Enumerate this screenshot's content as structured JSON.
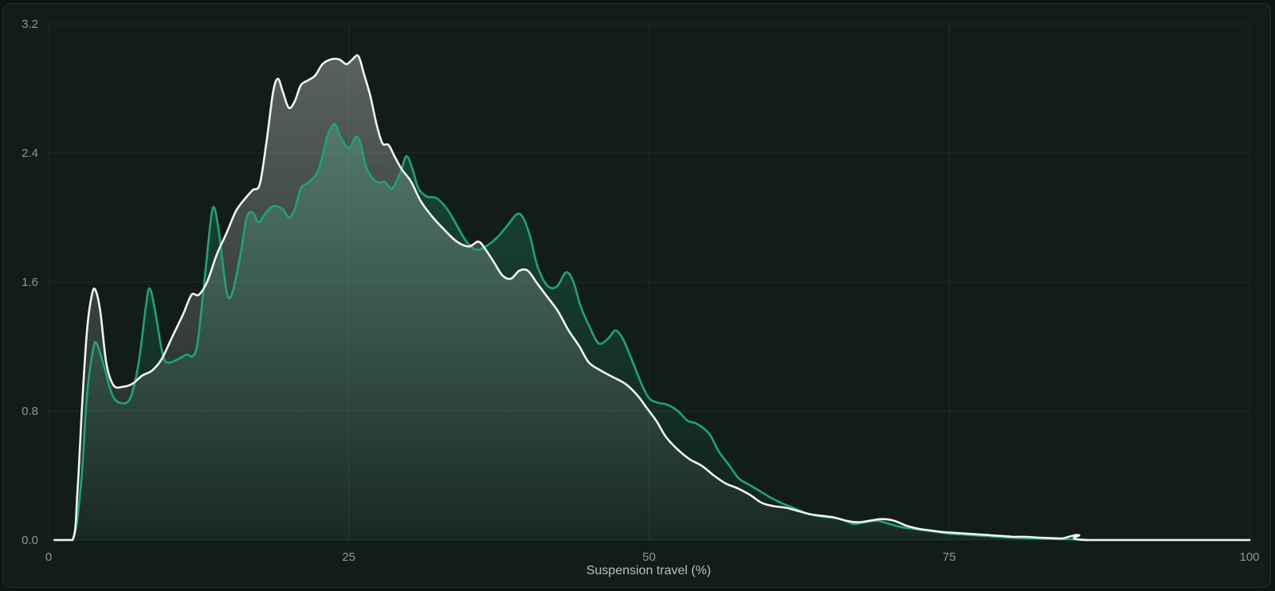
{
  "chart_data": {
    "type": "area",
    "title": "",
    "xlabel": "Suspension travel (%)",
    "ylabel": "",
    "xlim": [
      0,
      100
    ],
    "ylim": [
      0,
      3.2
    ],
    "x_ticks": [
      "0",
      "25",
      "50",
      "75",
      "100"
    ],
    "y_ticks": [
      "0.0",
      "0.8",
      "1.6",
      "2.4",
      "3.2"
    ],
    "grid": true,
    "colors": {
      "series_a": "#1ea574",
      "series_b": "#f2f4f3",
      "background": "#121c1a"
    },
    "series": [
      {
        "color": "#1ea574",
        "points": [
          [
            0.5,
            0
          ],
          [
            2,
            0
          ],
          [
            2.7,
            0.35
          ],
          [
            3.2,
            0.9
          ],
          [
            3.7,
            1.18
          ],
          [
            4,
            1.22
          ],
          [
            4.6,
            1.08
          ],
          [
            5.3,
            0.9
          ],
          [
            6,
            0.85
          ],
          [
            6.8,
            0.88
          ],
          [
            7.5,
            1.1
          ],
          [
            8.1,
            1.45
          ],
          [
            8.4,
            1.56
          ],
          [
            8.8,
            1.45
          ],
          [
            9.5,
            1.15
          ],
          [
            10,
            1.1
          ],
          [
            11,
            1.13
          ],
          [
            11.5,
            1.15
          ],
          [
            12,
            1.14
          ],
          [
            12.4,
            1.22
          ],
          [
            12.9,
            1.55
          ],
          [
            13.5,
            1.98
          ],
          [
            13.8,
            2.06
          ],
          [
            14.2,
            1.9
          ],
          [
            14.7,
            1.6
          ],
          [
            15,
            1.5
          ],
          [
            15.4,
            1.56
          ],
          [
            16,
            1.78
          ],
          [
            16.5,
            2.0
          ],
          [
            17,
            2.03
          ],
          [
            17.5,
            1.97
          ],
          [
            18,
            2.02
          ],
          [
            18.7,
            2.07
          ],
          [
            19.5,
            2.05
          ],
          [
            20,
            2.0
          ],
          [
            20.5,
            2.05
          ],
          [
            21,
            2.18
          ],
          [
            21.7,
            2.22
          ],
          [
            22.5,
            2.3
          ],
          [
            23.2,
            2.5
          ],
          [
            23.8,
            2.58
          ],
          [
            24.3,
            2.5
          ],
          [
            25,
            2.43
          ],
          [
            25.6,
            2.5
          ],
          [
            26,
            2.45
          ],
          [
            26.5,
            2.3
          ],
          [
            27.3,
            2.22
          ],
          [
            28,
            2.22
          ],
          [
            28.6,
            2.18
          ],
          [
            29.3,
            2.28
          ],
          [
            29.8,
            2.38
          ],
          [
            30.3,
            2.3
          ],
          [
            30.8,
            2.18
          ],
          [
            31.5,
            2.13
          ],
          [
            32.3,
            2.12
          ],
          [
            33.2,
            2.05
          ],
          [
            34,
            1.95
          ],
          [
            34.8,
            1.85
          ],
          [
            35.6,
            1.8
          ],
          [
            36.4,
            1.82
          ],
          [
            37.4,
            1.88
          ],
          [
            38.2,
            1.95
          ],
          [
            39,
            2.02
          ],
          [
            39.5,
            2.0
          ],
          [
            40.1,
            1.88
          ],
          [
            40.7,
            1.7
          ],
          [
            41.5,
            1.58
          ],
          [
            42.3,
            1.57
          ],
          [
            43.1,
            1.66
          ],
          [
            43.7,
            1.6
          ],
          [
            44.3,
            1.45
          ],
          [
            45,
            1.33
          ],
          [
            45.8,
            1.22
          ],
          [
            46.6,
            1.25
          ],
          [
            47.2,
            1.3
          ],
          [
            47.8,
            1.25
          ],
          [
            48.5,
            1.13
          ],
          [
            49.3,
            0.98
          ],
          [
            50,
            0.88
          ],
          [
            50.8,
            0.85
          ],
          [
            51.5,
            0.84
          ],
          [
            52.4,
            0.8
          ],
          [
            53.2,
            0.74
          ],
          [
            54,
            0.72
          ],
          [
            55,
            0.66
          ],
          [
            55.8,
            0.55
          ],
          [
            56.7,
            0.46
          ],
          [
            57.5,
            0.38
          ],
          [
            58.4,
            0.34
          ],
          [
            59.3,
            0.3
          ],
          [
            60.2,
            0.26
          ],
          [
            61,
            0.23
          ],
          [
            62,
            0.2
          ],
          [
            63,
            0.17
          ],
          [
            64,
            0.15
          ],
          [
            65,
            0.14
          ],
          [
            66,
            0.13
          ],
          [
            67,
            0.1
          ],
          [
            68,
            0.11
          ],
          [
            69,
            0.12
          ],
          [
            70,
            0.1
          ],
          [
            71,
            0.08
          ],
          [
            72,
            0.07
          ],
          [
            73,
            0.06
          ],
          [
            74,
            0.05
          ],
          [
            75,
            0.04
          ],
          [
            76,
            0.035
          ],
          [
            77,
            0.03
          ],
          [
            78,
            0.025
          ],
          [
            79,
            0.02
          ],
          [
            80,
            0.015
          ],
          [
            81,
            0.012
          ],
          [
            82,
            0.01
          ],
          [
            83,
            0.008
          ],
          [
            84,
            0.006
          ],
          [
            85,
            0.005
          ],
          [
            86,
            0.003
          ],
          [
            87,
            0
          ],
          [
            100,
            0
          ]
        ]
      },
      {
        "color": "#f2f4f3",
        "points": [
          [
            0.5,
            0
          ],
          [
            2,
            0
          ],
          [
            2.4,
            0.3
          ],
          [
            2.8,
            0.85
          ],
          [
            3.2,
            1.3
          ],
          [
            3.6,
            1.52
          ],
          [
            3.9,
            1.55
          ],
          [
            4.3,
            1.42
          ],
          [
            4.8,
            1.1
          ],
          [
            5.4,
            0.96
          ],
          [
            6.2,
            0.95
          ],
          [
            7,
            0.97
          ],
          [
            7.8,
            1.02
          ],
          [
            8.6,
            1.05
          ],
          [
            9.4,
            1.12
          ],
          [
            10.3,
            1.26
          ],
          [
            11.2,
            1.4
          ],
          [
            11.9,
            1.52
          ],
          [
            12.5,
            1.52
          ],
          [
            13.2,
            1.6
          ],
          [
            14,
            1.77
          ],
          [
            14.8,
            1.9
          ],
          [
            15.6,
            2.04
          ],
          [
            16.4,
            2.12
          ],
          [
            17,
            2.17
          ],
          [
            17.6,
            2.21
          ],
          [
            18.2,
            2.5
          ],
          [
            18.7,
            2.78
          ],
          [
            19.1,
            2.86
          ],
          [
            19.5,
            2.78
          ],
          [
            20,
            2.68
          ],
          [
            20.5,
            2.72
          ],
          [
            21,
            2.82
          ],
          [
            21.6,
            2.85
          ],
          [
            22.2,
            2.88
          ],
          [
            22.8,
            2.95
          ],
          [
            23.5,
            2.98
          ],
          [
            24.2,
            2.98
          ],
          [
            24.8,
            2.95
          ],
          [
            25.3,
            2.98
          ],
          [
            25.8,
            3.0
          ],
          [
            26.3,
            2.88
          ],
          [
            26.8,
            2.75
          ],
          [
            27.3,
            2.58
          ],
          [
            27.8,
            2.46
          ],
          [
            28.3,
            2.45
          ],
          [
            28.8,
            2.38
          ],
          [
            29.4,
            2.3
          ],
          [
            30.2,
            2.22
          ],
          [
            31,
            2.1
          ],
          [
            32,
            2.0
          ],
          [
            33,
            1.92
          ],
          [
            34,
            1.85
          ],
          [
            35,
            1.82
          ],
          [
            35.8,
            1.85
          ],
          [
            36.4,
            1.8
          ],
          [
            37.1,
            1.72
          ],
          [
            37.8,
            1.64
          ],
          [
            38.5,
            1.62
          ],
          [
            39.2,
            1.67
          ],
          [
            39.9,
            1.67
          ],
          [
            40.6,
            1.6
          ],
          [
            41.4,
            1.52
          ],
          [
            42.4,
            1.42
          ],
          [
            43.3,
            1.3
          ],
          [
            44.2,
            1.2
          ],
          [
            45,
            1.1
          ],
          [
            46,
            1.05
          ],
          [
            47,
            1.01
          ],
          [
            48,
            0.97
          ],
          [
            49,
            0.9
          ],
          [
            49.8,
            0.82
          ],
          [
            50.6,
            0.74
          ],
          [
            51.4,
            0.64
          ],
          [
            52.4,
            0.56
          ],
          [
            53.4,
            0.5
          ],
          [
            54.4,
            0.46
          ],
          [
            55.4,
            0.4
          ],
          [
            56.4,
            0.35
          ],
          [
            57.4,
            0.32
          ],
          [
            58.4,
            0.28
          ],
          [
            59.4,
            0.23
          ],
          [
            60.4,
            0.21
          ],
          [
            61.4,
            0.2
          ],
          [
            62.4,
            0.18
          ],
          [
            63.4,
            0.16
          ],
          [
            64.4,
            0.15
          ],
          [
            65.4,
            0.14
          ],
          [
            66.4,
            0.12
          ],
          [
            67.4,
            0.11
          ],
          [
            68.4,
            0.12
          ],
          [
            69.4,
            0.13
          ],
          [
            70.4,
            0.12
          ],
          [
            71.4,
            0.09
          ],
          [
            72.4,
            0.07
          ],
          [
            73.4,
            0.06
          ],
          [
            74.4,
            0.05
          ],
          [
            75.4,
            0.045
          ],
          [
            76.4,
            0.04
          ],
          [
            77.4,
            0.035
          ],
          [
            78.4,
            0.03
          ],
          [
            79.4,
            0.025
          ],
          [
            80.4,
            0.02
          ],
          [
            81.4,
            0.02
          ],
          [
            82.4,
            0.015
          ],
          [
            83.4,
            0.012
          ],
          [
            84.4,
            0.01
          ],
          [
            85.2,
            0.025
          ],
          [
            85.8,
            0.03
          ],
          [
            86.6,
            0
          ],
          [
            100,
            0
          ]
        ]
      }
    ]
  }
}
